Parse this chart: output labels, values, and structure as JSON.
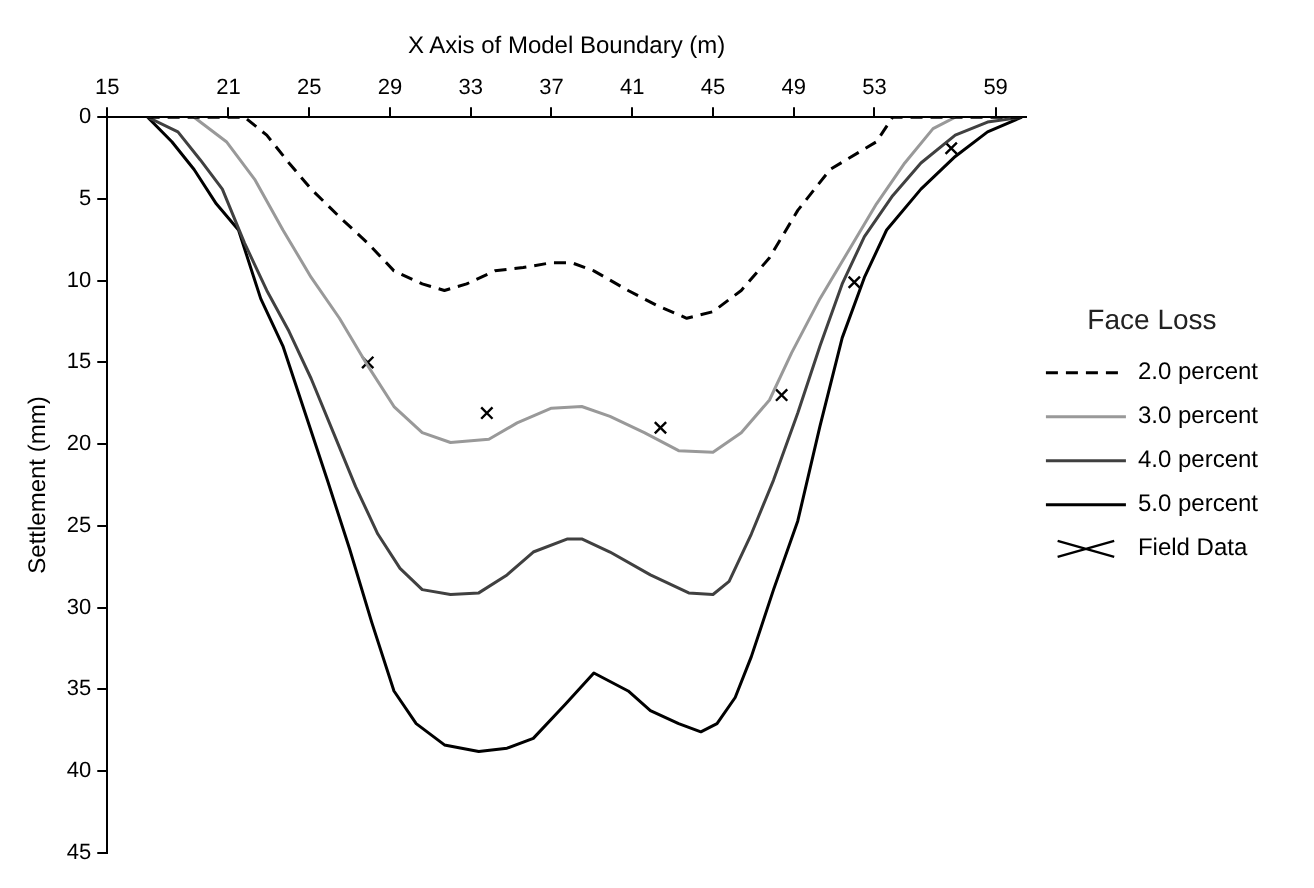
{
  "chart_data": {
    "type": "line",
    "xlabel": "X Axis of Model Boundary (m)",
    "ylabel": "Settlement (mm)",
    "legend_title": "Face Loss",
    "legend": "right",
    "grid": false,
    "marker": "none",
    "xlim": [
      15,
      60.5
    ],
    "ylim": [
      45,
      0
    ],
    "xticks": [
      15,
      21,
      25,
      29,
      33,
      37,
      41,
      45,
      49,
      53,
      59
    ],
    "yticks": [
      0,
      5,
      10,
      15,
      20,
      25,
      30,
      35,
      40,
      45
    ],
    "series": [
      {
        "name": "2.0 percent",
        "color": "#000000",
        "line_style": "dashed",
        "x": [
          17,
          21.8,
          22.9,
          24.0,
          25.1,
          26.5,
          27.9,
          29.2,
          30.6,
          31.7,
          32.8,
          34.2,
          35.6,
          37.0,
          38.0,
          39.1,
          40.8,
          42.2,
          43.7,
          45.0,
          46.4,
          47.8,
          49.2,
          50.8,
          53.1,
          53.9,
          60.3
        ],
        "values": [
          0,
          0,
          1.1,
          2.8,
          4.4,
          6.1,
          7.7,
          9.4,
          10.2,
          10.6,
          10.2,
          9.4,
          9.2,
          8.9,
          8.9,
          9.4,
          10.6,
          11.5,
          12.3,
          11.9,
          10.6,
          8.6,
          5.7,
          3.2,
          1.5,
          0,
          0
        ]
      },
      {
        "name": "3.0 percent",
        "color": "#999999",
        "line_style": "solid",
        "x": [
          19.3,
          20.9,
          22.3,
          23.7,
          25.1,
          26.5,
          27.9,
          29.2,
          30.6,
          32.0,
          33.9,
          35.3,
          37.0,
          38.5,
          39.9,
          41.6,
          43.3,
          45.0,
          46.4,
          47.8,
          48.9,
          50.3,
          51.7,
          53.1,
          54.5,
          55.9,
          57.0
        ],
        "values": [
          0,
          1.5,
          3.8,
          6.9,
          9.8,
          12.3,
          15.2,
          17.7,
          19.3,
          19.9,
          19.7,
          18.7,
          17.8,
          17.7,
          18.3,
          19.3,
          20.4,
          20.5,
          19.3,
          17.3,
          14.4,
          11.1,
          8.2,
          5.3,
          2.8,
          0.7,
          0
        ]
      },
      {
        "name": "4.0 percent",
        "color": "#404040",
        "line_style": "solid",
        "x": [
          17,
          18.5,
          19.6,
          20.7,
          21.8,
          22.9,
          24.0,
          25.1,
          26.2,
          27.3,
          28.4,
          29.5,
          30.6,
          32.0,
          33.4,
          34.8,
          36.1,
          37.8,
          38.5,
          39.9,
          41.9,
          43.8,
          45.0,
          45.8,
          46.9,
          48.0,
          49.2,
          50.3,
          51.4,
          52.5,
          53.9,
          55.3,
          57.0,
          58.6,
          60.3
        ],
        "values": [
          0,
          0.9,
          2.6,
          4.4,
          7.7,
          10.6,
          13.1,
          16.0,
          19.3,
          22.6,
          25.5,
          27.6,
          28.9,
          29.2,
          29.1,
          28.0,
          26.6,
          25.8,
          25.8,
          26.6,
          28.0,
          29.1,
          29.2,
          28.4,
          25.5,
          22.2,
          18.1,
          14.0,
          10.2,
          7.3,
          4.8,
          2.8,
          1.1,
          0.3,
          0
        ]
      },
      {
        "name": "5.0 percent",
        "color": "#000000",
        "line_style": "solid",
        "x": [
          17,
          18.2,
          19.3,
          20.4,
          21.5,
          22.6,
          23.7,
          24.8,
          25.9,
          27.0,
          28.1,
          29.2,
          30.3,
          31.7,
          33.4,
          34.8,
          36.1,
          37.7,
          39.1,
          40.8,
          41.9,
          43.3,
          44.4,
          45.2,
          46.1,
          46.9,
          48.0,
          49.2,
          50.3,
          51.4,
          52.5,
          53.6,
          55.3,
          57.0,
          58.6,
          60.3
        ],
        "values": [
          0,
          1.5,
          3.2,
          5.3,
          6.9,
          11.1,
          14.0,
          18.1,
          22.2,
          26.4,
          30.9,
          35.1,
          37.1,
          38.4,
          38.8,
          38.6,
          38.0,
          35.9,
          34.0,
          35.1,
          36.3,
          37.1,
          37.6,
          37.1,
          35.5,
          33.0,
          28.9,
          24.7,
          18.9,
          13.5,
          9.8,
          6.9,
          4.4,
          2.4,
          0.9,
          0
        ]
      },
      {
        "name": "Field Data",
        "type": "scatter",
        "marker": "cross",
        "color": "#000000",
        "x": [
          27.9,
          33.8,
          42.4,
          48.4,
          52.0,
          56.8
        ],
        "values": [
          15.0,
          18.1,
          19.0,
          17.0,
          10.1,
          1.9
        ]
      }
    ]
  }
}
